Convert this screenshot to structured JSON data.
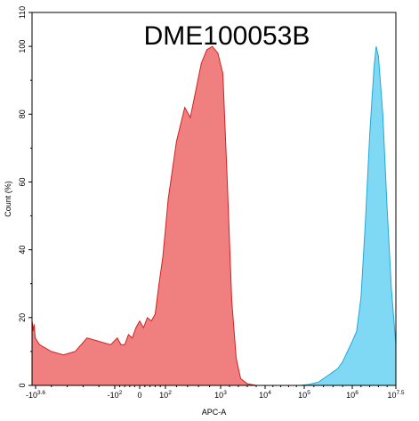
{
  "chart_data": {
    "type": "area",
    "title": "DME100053B",
    "xlabel": "APC-A",
    "ylabel": "Count  (%)",
    "ylim": [
      0,
      110
    ],
    "x_scale": "biexponential",
    "x_ticks": [
      {
        "base": "-10",
        "exp": "3.6"
      },
      {
        "base": "-10",
        "exp": "2"
      },
      {
        "base": "0",
        "exp": ""
      },
      {
        "base": "10",
        "exp": "2"
      },
      {
        "base": "10",
        "exp": "3"
      },
      {
        "base": "10",
        "exp": "4"
      },
      {
        "base": "10",
        "exp": "5"
      },
      {
        "base": "10",
        "exp": "6"
      },
      {
        "base": "10",
        "exp": "7.5"
      }
    ],
    "y_ticks": [
      "0",
      "20",
      "40",
      "60",
      "80",
      "100",
      "110"
    ],
    "grid": false,
    "series": [
      {
        "color": "#F08080",
        "stroke": "#D42020",
        "points": [
          [
            -10.0,
            0
          ],
          [
            -7.0,
            0.5
          ],
          [
            -4.5,
            1
          ],
          [
            -3.8,
            3
          ],
          [
            -3.5,
            8
          ],
          [
            -3.3,
            14
          ],
          [
            -3.1,
            16
          ],
          [
            -2.95,
            15
          ],
          [
            -2.8,
            18
          ],
          [
            -2.65,
            17
          ],
          [
            -2.5,
            20
          ],
          [
            -2.35,
            22
          ],
          [
            -2.2,
            24
          ],
          [
            -2.05,
            26
          ],
          [
            -1.9,
            25
          ],
          [
            -1.75,
            24
          ],
          [
            -1.6,
            23
          ],
          [
            -1.45,
            25
          ],
          [
            -1.3,
            22
          ],
          [
            -1.15,
            20
          ],
          [
            -1.0,
            19
          ],
          [
            -0.85,
            18
          ],
          [
            -0.7,
            16
          ],
          [
            -0.55,
            17
          ],
          [
            -0.4,
            18
          ],
          [
            -0.25,
            16
          ],
          [
            -0.1,
            14
          ],
          [
            0.05,
            12
          ],
          [
            0.2,
            10
          ],
          [
            0.35,
            9
          ],
          [
            0.5,
            10
          ],
          [
            0.65,
            14
          ],
          [
            0.8,
            13
          ],
          [
            0.95,
            12
          ],
          [
            1.1,
            14
          ],
          [
            1.25,
            12
          ],
          [
            1.4,
            12
          ],
          [
            1.55,
            15
          ],
          [
            1.7,
            14
          ],
          [
            1.85,
            17
          ],
          [
            2.0,
            19
          ],
          [
            2.15,
            17
          ],
          [
            2.3,
            20
          ],
          [
            2.45,
            19
          ],
          [
            2.6,
            21
          ],
          [
            2.75,
            30
          ],
          [
            2.9,
            38
          ],
          [
            3.05,
            55
          ],
          [
            3.2,
            72
          ],
          [
            3.35,
            82
          ],
          [
            3.45,
            79
          ],
          [
            3.55,
            87
          ],
          [
            3.65,
            95
          ],
          [
            3.75,
            99
          ],
          [
            3.85,
            100
          ],
          [
            3.95,
            98
          ],
          [
            4.05,
            92
          ],
          [
            4.15,
            60
          ],
          [
            4.25,
            25
          ],
          [
            4.35,
            8
          ],
          [
            4.45,
            2
          ],
          [
            4.6,
            0.5
          ],
          [
            4.8,
            0
          ]
        ]
      },
      {
        "color": "#7FD8F4",
        "stroke": "#23A9D6",
        "points": [
          [
            5.9,
            0
          ],
          [
            6.1,
            0.3
          ],
          [
            6.3,
            1
          ],
          [
            6.5,
            3
          ],
          [
            6.6,
            4
          ],
          [
            6.7,
            5
          ],
          [
            6.8,
            7
          ],
          [
            6.9,
            10
          ],
          [
            7.0,
            13
          ],
          [
            7.1,
            16
          ],
          [
            7.2,
            26
          ],
          [
            7.3,
            48
          ],
          [
            7.4,
            74
          ],
          [
            7.5,
            94
          ],
          [
            7.55,
            100
          ],
          [
            7.6,
            97
          ],
          [
            7.7,
            80
          ],
          [
            7.8,
            52
          ],
          [
            7.9,
            28
          ],
          [
            8.0,
            12
          ],
          [
            8.1,
            4
          ],
          [
            8.25,
            1
          ],
          [
            8.4,
            0.3
          ],
          [
            8.6,
            0
          ]
        ]
      }
    ]
  }
}
